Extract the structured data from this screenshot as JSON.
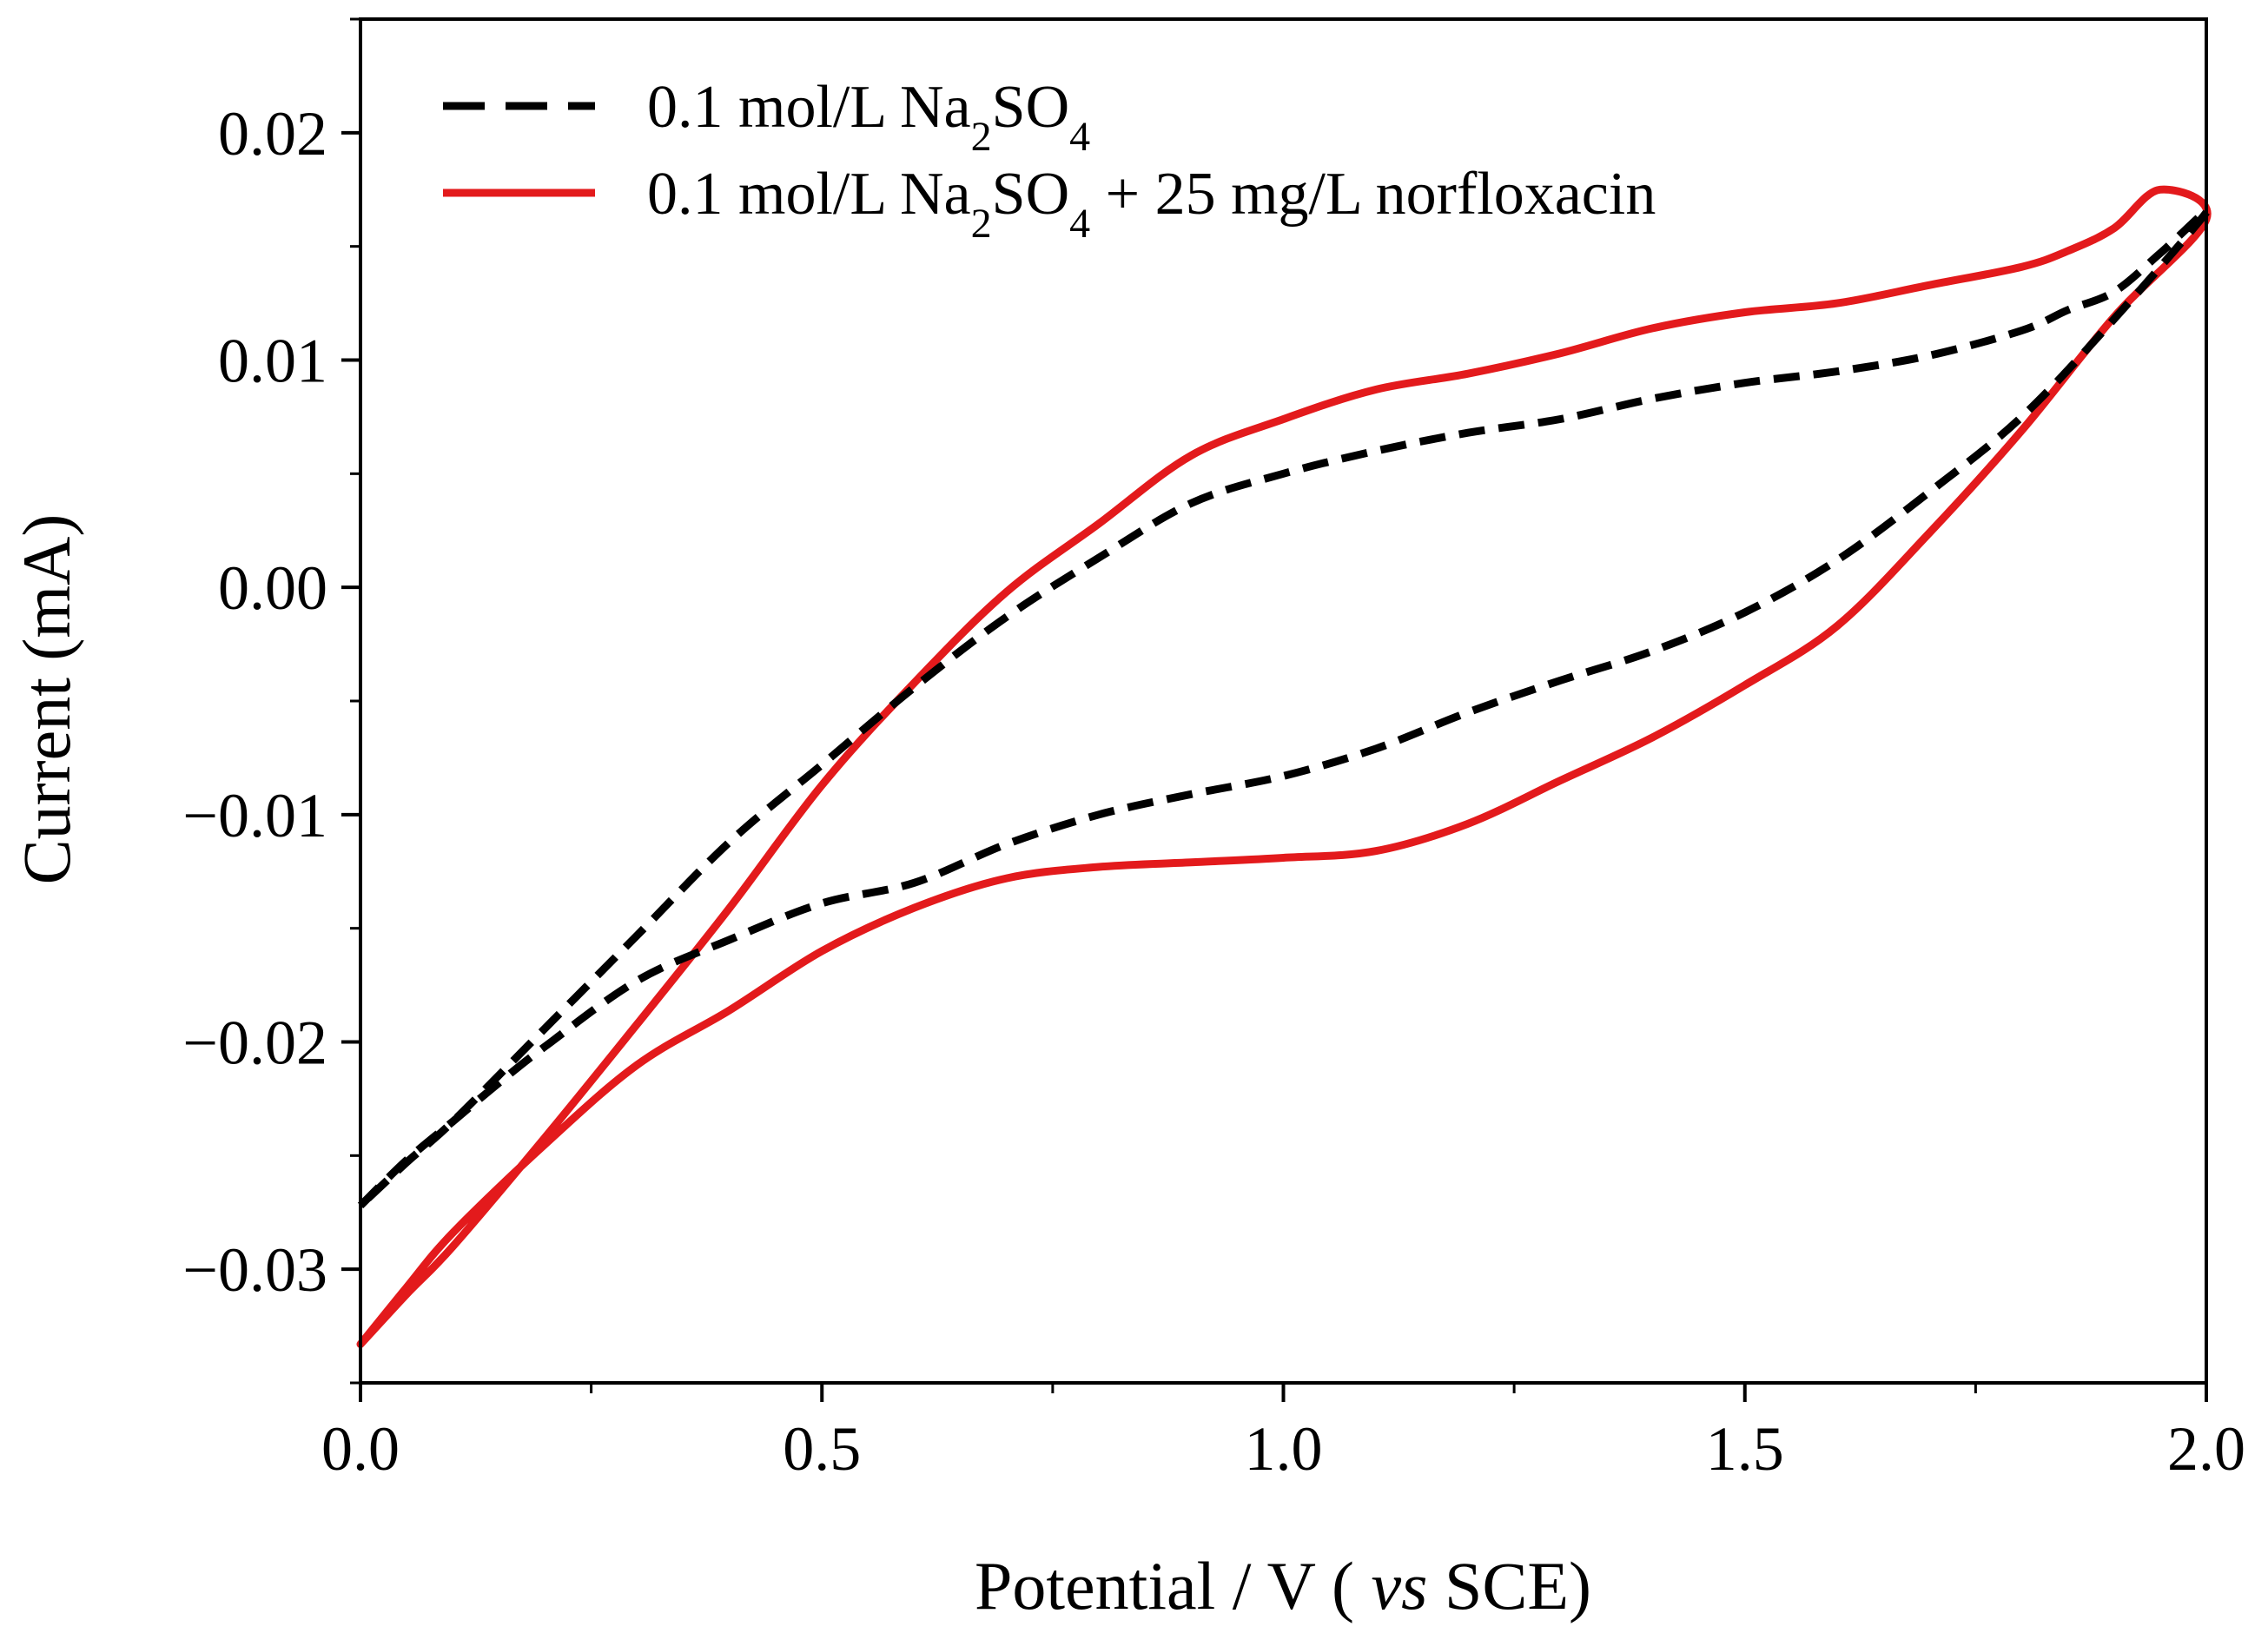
{
  "chart_data": {
    "type": "line",
    "title": "",
    "xlabel": {
      "main": "Potential / V ( ",
      "italic": "vs",
      "suffix": " SCE)"
    },
    "ylabel": "Current (mA)",
    "xlim": [
      0.0,
      2.0
    ],
    "ylim": [
      -0.035,
      0.025
    ],
    "x_ticks": [
      {
        "value": 0.0,
        "label": "0.0"
      },
      {
        "value": 0.5,
        "label": "0.5"
      },
      {
        "value": 1.0,
        "label": "1.0"
      },
      {
        "value": 1.5,
        "label": "1.5"
      },
      {
        "value": 2.0,
        "label": "2.0"
      }
    ],
    "y_ticks": [
      {
        "value": -0.03,
        "label": "−0.03"
      },
      {
        "value": -0.02,
        "label": "−0.02"
      },
      {
        "value": -0.01,
        "label": "−0.01"
      },
      {
        "value": 0.0,
        "label": "0.00"
      },
      {
        "value": 0.01,
        "label": "0.01"
      },
      {
        "value": 0.02,
        "label": "0.02"
      }
    ],
    "x_minor_step": 0.25,
    "y_minor_step": 0.005,
    "legend_position": "top-left",
    "series": [
      {
        "name": "0.1 mol/L Na2SO4",
        "legend": {
          "pre": "0.1 mol/L Na",
          "sub1": "2",
          "mid": "SO",
          "sub2": "4",
          "post": ""
        },
        "color": "#000000",
        "style": "dashed",
        "x": [
          0.0,
          0.05,
          0.1,
          0.15,
          0.2,
          0.3,
          0.4,
          0.5,
          0.6,
          0.7,
          0.8,
          0.9,
          1.0,
          1.1,
          1.2,
          1.3,
          1.4,
          1.5,
          1.6,
          1.7,
          1.8,
          1.9,
          2.0,
          1.95,
          1.9,
          1.85,
          1.8,
          1.7,
          1.6,
          1.5,
          1.4,
          1.3,
          1.2,
          1.1,
          1.0,
          0.9,
          0.8,
          0.7,
          0.6,
          0.5,
          0.4,
          0.3,
          0.2,
          0.1,
          0.05,
          0.0
        ],
        "y": [
          -0.0272,
          -0.0252,
          -0.0235,
          -0.0218,
          -0.0202,
          -0.0173,
          -0.0155,
          -0.0139,
          -0.013,
          -0.0113,
          -0.01,
          -0.0091,
          -0.0083,
          -0.0071,
          -0.0055,
          -0.0041,
          -0.0028,
          -0.0011,
          0.0012,
          0.0042,
          0.0075,
          0.0118,
          0.0165,
          0.0147,
          0.013,
          0.0122,
          0.0113,
          0.0102,
          0.0095,
          0.009,
          0.0083,
          0.0074,
          0.0068,
          0.006,
          0.005,
          0.0037,
          0.0013,
          -0.0013,
          -0.0044,
          -0.0078,
          -0.0112,
          -0.0153,
          -0.0194,
          -0.0235,
          -0.0253,
          -0.0272
        ]
      },
      {
        "name": "0.1 mol/L Na2SO4 + 25 mg/L norfloxacin",
        "legend": {
          "pre": "0.1 mol/L Na",
          "sub1": "2",
          "mid": "SO",
          "sub2": "4",
          "post": " + 25 mg/L norfloxacin"
        },
        "color": "#e31a1c",
        "style": "solid",
        "x": [
          0.0,
          0.05,
          0.1,
          0.2,
          0.3,
          0.4,
          0.5,
          0.6,
          0.7,
          0.8,
          0.9,
          1.0,
          1.1,
          1.2,
          1.3,
          1.4,
          1.5,
          1.6,
          1.7,
          1.8,
          1.9,
          2.0,
          1.95,
          1.9,
          1.85,
          1.8,
          1.7,
          1.6,
          1.5,
          1.4,
          1.3,
          1.2,
          1.1,
          1.0,
          0.9,
          0.8,
          0.7,
          0.6,
          0.5,
          0.4,
          0.3,
          0.2,
          0.1,
          0.05,
          0.0
        ],
        "y": [
          -0.0333,
          -0.0308,
          -0.0284,
          -0.0245,
          -0.021,
          -0.0186,
          -0.016,
          -0.0141,
          -0.0128,
          -0.0123,
          -0.0121,
          -0.0119,
          -0.0116,
          -0.0104,
          -0.0085,
          -0.0066,
          -0.0043,
          -0.0017,
          0.0024,
          0.0069,
          0.0119,
          0.0162,
          0.0175,
          0.0158,
          0.0148,
          0.0141,
          0.0133,
          0.0125,
          0.0121,
          0.0114,
          0.0103,
          0.0094,
          0.0087,
          0.0074,
          0.0058,
          0.0028,
          -0.0002,
          -0.0042,
          -0.0087,
          -0.0141,
          -0.0192,
          -0.0242,
          -0.029,
          -0.0311,
          -0.0333
        ]
      }
    ]
  }
}
